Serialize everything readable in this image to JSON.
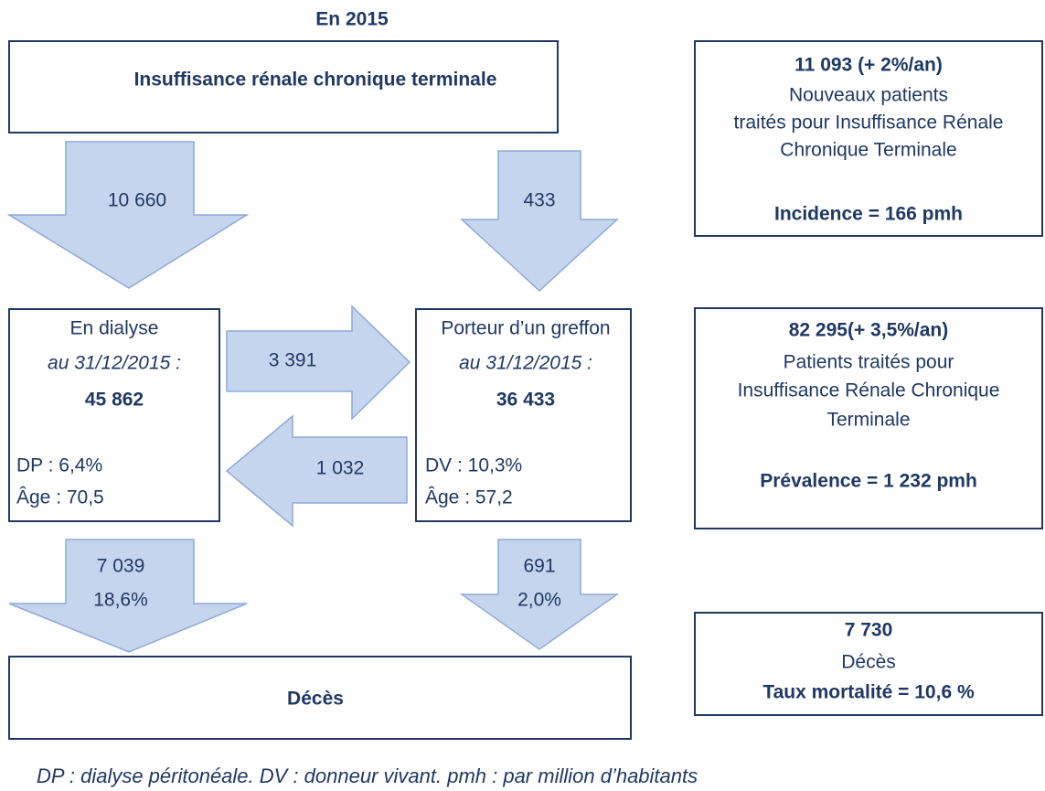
{
  "title": "En 2015",
  "source_box": {
    "label": "Insuffisance rénale chronique terminale"
  },
  "flows": {
    "to_dialysis": "10 660",
    "to_graft": "433",
    "dialysis_to_graft": "3 391",
    "graft_to_dialysis": "1 032",
    "dialysis_deaths": [
      "7 039",
      "18,6%"
    ],
    "graft_deaths": [
      "691",
      "2,0%"
    ]
  },
  "dialysis_box": {
    "title": "En dialyse",
    "date": "au 31/12/2015 :",
    "count": "45 862",
    "details": [
      "DP : 6,4%",
      "Âge : 70,5"
    ]
  },
  "graft_box": {
    "title": "Porteur d’un greffon",
    "date": "au 31/12/2015 :",
    "count": "36 433",
    "details": [
      "DV : 10,3%",
      "Âge : 57,2"
    ]
  },
  "deaths_box": {
    "label": "Décès"
  },
  "side_boxes": [
    {
      "headline": "11 093 (+ 2%/an)",
      "lines": [
        "Nouveaux patients",
        "traités pour Insuffisance Rénale",
        "Chronique Terminale"
      ],
      "footer": "Incidence = 166 pmh"
    },
    {
      "headline": "82 295(+ 3,5%/an)",
      "lines": [
        "Patients traités pour",
        "Insuffisance Rénale Chronique",
        "Terminale"
      ],
      "footer": "Prévalence = 1 232 pmh"
    },
    {
      "headline": "7 730",
      "lines": [
        "Décès"
      ],
      "footer": "Taux mortalité = 10,6 %"
    }
  ],
  "footnote": "DP : dialyse péritonéale.  DV : donneur vivant. pmh : par million d’habitants"
}
